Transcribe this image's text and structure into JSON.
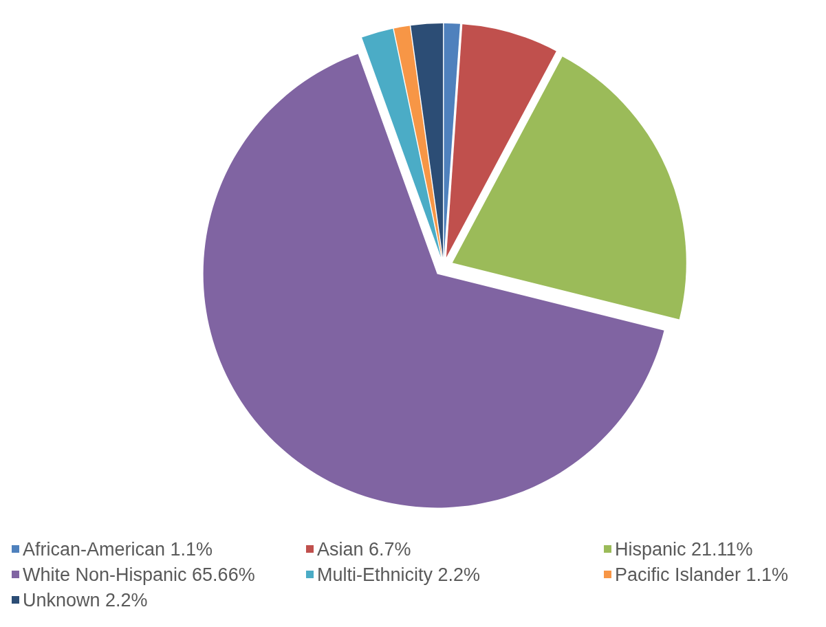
{
  "chart_data": {
    "type": "pie",
    "categories": [
      "African-American",
      "Asian",
      "Hispanic",
      "White Non-Hispanic",
      "Multi-Ethnicity",
      "Pacific Islander",
      "Unknown"
    ],
    "values": [
      1.1,
      6.7,
      21.11,
      65.66,
      2.2,
      1.1,
      2.2
    ],
    "value_labels": [
      "1.1%",
      "6.7%",
      "21.11%",
      "65.66%",
      "2.2%",
      "1.1%",
      "2.2%"
    ],
    "colors": [
      "#4f81bd",
      "#c0504d",
      "#9bbb59",
      "#8064a2",
      "#4bacc6",
      "#f79646",
      "#2c4d75"
    ],
    "legend": "bottom"
  }
}
